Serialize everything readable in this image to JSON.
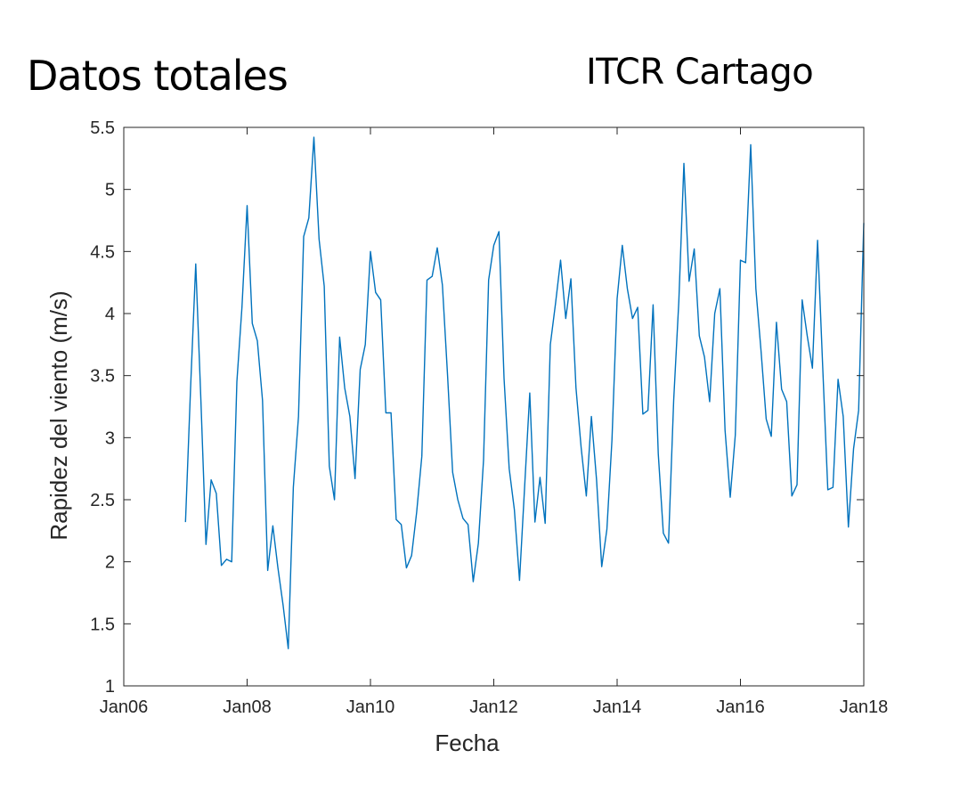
{
  "header": {
    "left_title": "Datos totales",
    "right_title": "ITCR Cartago"
  },
  "chart_data": {
    "type": "line",
    "xlabel": "Fecha",
    "ylabel": "Rapidez del viento (m/s)",
    "xlim": [
      "2006-01",
      "2018-01"
    ],
    "ylim": [
      1,
      5.5
    ],
    "x_ticks": [
      "Jan06",
      "Jan08",
      "Jan10",
      "Jan12",
      "Jan14",
      "Jan16",
      "Jan18"
    ],
    "y_ticks": [
      "1",
      "1.5",
      "2",
      "2.5",
      "3",
      "3.5",
      "4",
      "4.5",
      "5",
      "5.5"
    ],
    "grid": false,
    "line_color": "#0072BD",
    "series": [
      {
        "x": [
          "2007-01",
          "2007-02",
          "2007-03",
          "2007-04",
          "2007-05",
          "2007-06",
          "2007-07",
          "2007-08",
          "2007-09",
          "2007-10",
          "2007-11",
          "2007-12",
          "2008-01",
          "2008-02",
          "2008-03",
          "2008-04",
          "2008-05",
          "2008-06",
          "2008-07",
          "2008-08",
          "2008-09",
          "2008-10",
          "2008-11",
          "2008-12",
          "2009-01",
          "2009-02",
          "2009-03",
          "2009-04",
          "2009-05",
          "2009-06",
          "2009-07",
          "2009-08",
          "2009-09",
          "2009-10",
          "2009-11",
          "2009-12",
          "2010-01",
          "2010-02",
          "2010-03",
          "2010-04",
          "2010-05",
          "2010-06",
          "2010-07",
          "2010-08",
          "2010-09",
          "2010-10",
          "2010-11",
          "2010-12",
          "2011-01",
          "2011-02",
          "2011-03",
          "2011-04",
          "2011-05",
          "2011-06",
          "2011-07",
          "2011-08",
          "2011-09",
          "2011-10",
          "2011-11",
          "2011-12",
          "2012-01",
          "2012-02",
          "2012-03",
          "2012-04",
          "2012-05",
          "2012-06",
          "2012-07",
          "2012-08",
          "2012-09",
          "2012-10",
          "2012-11",
          "2012-12",
          "2013-01",
          "2013-02",
          "2013-03",
          "2013-04",
          "2013-05",
          "2013-06",
          "2013-07",
          "2013-08",
          "2013-09",
          "2013-10",
          "2013-11",
          "2013-12",
          "2014-01",
          "2014-02",
          "2014-03",
          "2014-04",
          "2014-05",
          "2014-06",
          "2014-07",
          "2014-08",
          "2014-09",
          "2014-10",
          "2014-11",
          "2014-12",
          "2015-01",
          "2015-02",
          "2015-03",
          "2015-04",
          "2015-05",
          "2015-06",
          "2015-07",
          "2015-08",
          "2015-09",
          "2015-10",
          "2015-11",
          "2015-12",
          "2016-01",
          "2016-02",
          "2016-03",
          "2016-04",
          "2016-05",
          "2016-06",
          "2016-07",
          "2016-08",
          "2016-09",
          "2016-10",
          "2016-11",
          "2016-12",
          "2017-01",
          "2017-02",
          "2017-03",
          "2017-04",
          "2017-05",
          "2017-06",
          "2017-07",
          "2017-08",
          "2017-09",
          "2017-10",
          "2017-11",
          "2017-12",
          "2018-01"
        ],
        "values": [
          2.32,
          3.4,
          4.4,
          3.3,
          2.14,
          2.66,
          2.55,
          1.97,
          2.02,
          2.0,
          3.45,
          4.05,
          4.87,
          3.92,
          3.78,
          3.3,
          1.93,
          2.29,
          1.95,
          1.65,
          1.3,
          2.6,
          3.17,
          4.62,
          4.77,
          5.42,
          4.6,
          4.22,
          2.77,
          2.5,
          3.81,
          3.4,
          3.17,
          2.67,
          3.55,
          3.75,
          4.5,
          4.17,
          4.11,
          3.2,
          3.2,
          2.34,
          2.3,
          1.95,
          2.05,
          2.4,
          2.85,
          4.27,
          4.3,
          4.53,
          4.23,
          3.5,
          2.72,
          2.5,
          2.35,
          2.3,
          1.84,
          2.15,
          2.82,
          4.27,
          4.55,
          4.66,
          3.48,
          2.75,
          2.42,
          1.85,
          2.6,
          3.36,
          2.32,
          2.68,
          2.31,
          3.75,
          4.08,
          4.43,
          3.96,
          4.28,
          3.4,
          2.92,
          2.53,
          3.17,
          2.66,
          1.96,
          2.26,
          2.98,
          4.12,
          4.55,
          4.2,
          3.96,
          4.05,
          3.19,
          3.22,
          4.07,
          2.87,
          2.23,
          2.15,
          3.3,
          4.1,
          5.21,
          4.26,
          4.52,
          3.82,
          3.65,
          3.29,
          4.0,
          4.2,
          3.06,
          2.52,
          3.02,
          4.43,
          4.41,
          5.36,
          4.2,
          3.7,
          3.15,
          3.01,
          3.93,
          3.39,
          3.29,
          2.53,
          2.62,
          4.11,
          3.82,
          3.56,
          4.59,
          3.58,
          2.58,
          2.6,
          3.47,
          3.17,
          2.28,
          2.91,
          3.22,
          4.73
        ]
      }
    ]
  }
}
